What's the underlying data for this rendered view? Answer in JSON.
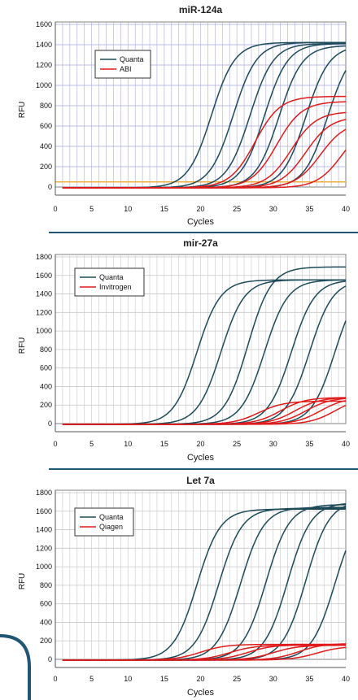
{
  "colors": {
    "quanta": "#1d4a59",
    "competitor": "#e01b1b",
    "threshold": "#f0b040",
    "divider": "#1e5673",
    "grid_purple": "#aaaae0",
    "grid_gray": "#c8c8c8"
  },
  "chart_data": [
    {
      "type": "line",
      "title": "miR-124a",
      "xlabel": "Cycles",
      "ylabel": "RFU",
      "xlim": [
        0,
        40
      ],
      "ylim": [
        0,
        1600
      ],
      "xticks": [
        "0",
        "5",
        "10",
        "15",
        "20",
        "25",
        "30",
        "35",
        "40"
      ],
      "yticks": [
        "0",
        "200",
        "400",
        "600",
        "800",
        "1000",
        "1200",
        "1400",
        "1600"
      ],
      "threshold": 50,
      "legend": {
        "placement": "upper-left",
        "entries": [
          "Quanta",
          "ABI"
        ]
      },
      "series": [
        {
          "name": "Quanta",
          "ct": [
            21.5,
            24.5,
            26.8,
            28.8,
            30.8,
            34.5,
            37.5
          ],
          "plateau": [
            1430,
            1430,
            1420,
            1420,
            1400,
            1400,
            1400
          ]
        },
        {
          "name": "ABI",
          "ct": [
            27.5,
            30.5,
            32.5,
            34.5,
            36.5,
            39.5
          ],
          "plateau": [
            900,
            850,
            750,
            700,
            650,
            650
          ]
        }
      ]
    },
    {
      "type": "line",
      "title": "mir-27a",
      "xlabel": "Cycles",
      "ylabel": "RFU",
      "xlim": [
        0,
        40
      ],
      "ylim": [
        0,
        1800
      ],
      "xticks": [
        "0",
        "5",
        "10",
        "15",
        "20",
        "25",
        "30",
        "35",
        "40"
      ],
      "yticks": [
        "0",
        "200",
        "400",
        "600",
        "800",
        "1000",
        "1200",
        "1400",
        "1600",
        "1800"
      ],
      "legend": {
        "placement": "upper-left",
        "entries": [
          "Quanta",
          "Invitrogen"
        ]
      },
      "series": [
        {
          "name": "Quanta",
          "ct": [
            19.5,
            22.8,
            26.5,
            28.8,
            32.5,
            35.0,
            38.5
          ],
          "plateau": [
            1560,
            1560,
            1700,
            1560,
            1560,
            1560,
            1560
          ]
        },
        {
          "name": "Invitrogen",
          "ct": [
            28.0,
            31.0,
            33.0,
            34.5,
            36.5,
            38.5
          ],
          "plateau": [
            250,
            290,
            290,
            290,
            290,
            290
          ]
        }
      ]
    },
    {
      "type": "line",
      "title": "Let 7a",
      "xlabel": "Cycles",
      "ylabel": "RFU",
      "xlim": [
        0,
        40
      ],
      "ylim": [
        0,
        1800
      ],
      "xticks": [
        "0",
        "5",
        "10",
        "15",
        "20",
        "25",
        "30",
        "35",
        "40"
      ],
      "yticks": [
        "0",
        "200",
        "400",
        "600",
        "800",
        "1000",
        "1200",
        "1400",
        "1600",
        "1800"
      ],
      "legend": {
        "placement": "upper-left",
        "entries": [
          "Quanta",
          "Qiagen"
        ]
      },
      "series": [
        {
          "name": "Quanta",
          "ct": [
            19.5,
            22.5,
            25.5,
            29.0,
            32.0,
            34.5,
            38.5
          ],
          "plateau": [
            1630,
            1640,
            1650,
            1680,
            1700,
            1720,
            1650
          ]
        },
        {
          "name": "Qiagen",
          "ct": [
            20.0,
            24.0,
            26.5,
            30.0,
            33.5,
            36.0
          ],
          "plateau": [
            170,
            160,
            165,
            160,
            180,
            150
          ]
        }
      ]
    }
  ]
}
